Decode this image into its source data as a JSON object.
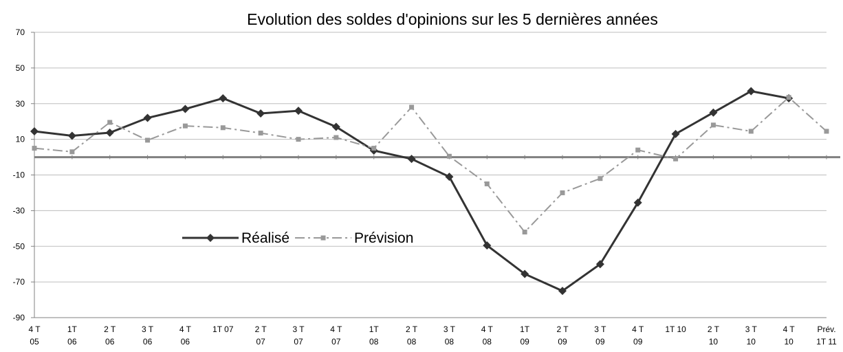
{
  "chart_data": {
    "type": "line",
    "title": "Evolution des soldes d'opinions sur les 5 dernières années",
    "categories": [
      [
        "4 T",
        "05"
      ],
      [
        "1T",
        "06"
      ],
      [
        "2 T",
        "06"
      ],
      [
        "3 T",
        "06"
      ],
      [
        "4 T",
        "06"
      ],
      [
        "1T 07"
      ],
      [
        "2 T",
        "07"
      ],
      [
        "3 T",
        "07"
      ],
      [
        "4 T",
        "07"
      ],
      [
        "1T",
        "08"
      ],
      [
        "2 T",
        "08"
      ],
      [
        "3 T",
        "08"
      ],
      [
        "4 T",
        "08"
      ],
      [
        "1T",
        "09"
      ],
      [
        "2 T",
        "09"
      ],
      [
        "3 T",
        "09"
      ],
      [
        "4 T",
        "09"
      ],
      [
        "1T 10"
      ],
      [
        "2 T",
        "10"
      ],
      [
        "3 T",
        "10"
      ],
      [
        "4 T",
        "10"
      ],
      [
        "Prév.",
        "1T 11"
      ]
    ],
    "series": [
      {
        "name": "Réalisé",
        "color": "#333333",
        "values": [
          14.5,
          12,
          13.7,
          22,
          27,
          33,
          24.5,
          26,
          17,
          3.7,
          -1,
          -11,
          -49.5,
          -65.5,
          -75,
          -60,
          -25.5,
          13,
          25,
          37,
          33,
          null
        ]
      },
      {
        "name": "Prévision",
        "color": "#999999",
        "values": [
          5,
          3,
          19.5,
          9.5,
          17.5,
          16.5,
          13.5,
          10,
          11,
          5,
          28,
          0.5,
          -15,
          -42,
          -20,
          -12,
          4,
          -1,
          18,
          14.5,
          33.5,
          14.5
        ]
      }
    ],
    "ylim": [
      -90,
      70
    ],
    "yticks": [
      -90,
      -70,
      -50,
      -30,
      -10,
      10,
      30,
      50,
      70
    ],
    "grid": true
  }
}
